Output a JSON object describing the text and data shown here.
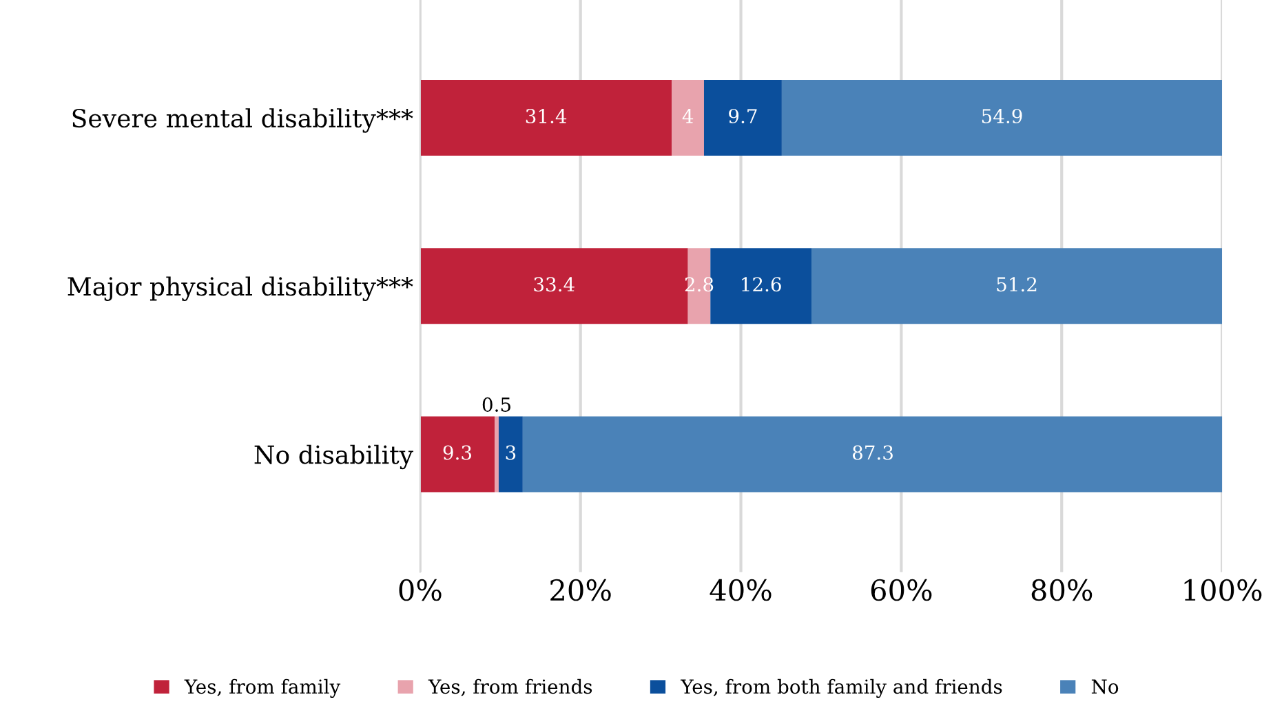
{
  "chart_data": {
    "type": "bar",
    "orientation": "horizontal",
    "stacked": true,
    "data_labels": true,
    "grid": "x",
    "legend": "bottom",
    "categories": [
      "Severe mental disability***",
      "Major physical disability***",
      "No disability"
    ],
    "series": [
      {
        "name": "Yes, from family",
        "color": "#c0223a",
        "values": [
          31.4,
          33.4,
          9.3
        ]
      },
      {
        "name": "Yes, from friends",
        "color": "#e8a3ad",
        "values": [
          4,
          2.8,
          0.5
        ]
      },
      {
        "name": "Yes, from both family and friends",
        "color": "#0b4f9c",
        "values": [
          9.7,
          12.6,
          3
        ]
      },
      {
        "name": "No",
        "color": "#4a82b8",
        "values": [
          54.9,
          51.2,
          87.3
        ]
      }
    ],
    "xlim": [
      0,
      100
    ],
    "xticks": [
      {
        "value": 0,
        "label": "0%"
      },
      {
        "value": 20,
        "label": "20%"
      },
      {
        "value": 40,
        "label": "40%"
      },
      {
        "value": 60,
        "label": "60%"
      },
      {
        "value": 80,
        "label": "80%"
      },
      {
        "value": 100,
        "label": "100%"
      }
    ]
  }
}
